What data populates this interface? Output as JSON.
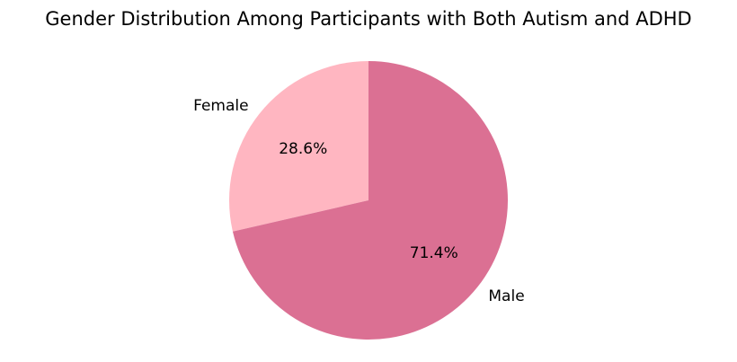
{
  "chart_data": {
    "type": "pie",
    "title": "Gender Distribution Among Participants with Both Autism and ADHD",
    "slices": [
      {
        "label": "Female",
        "value": 28.6,
        "pct_text": "28.6%",
        "color": "#ffb6c1"
      },
      {
        "label": "Male",
        "value": 71.4,
        "pct_text": "71.4%",
        "color": "#db7093"
      }
    ],
    "start_angle_deg": 90,
    "direction": "counterclockwise"
  }
}
